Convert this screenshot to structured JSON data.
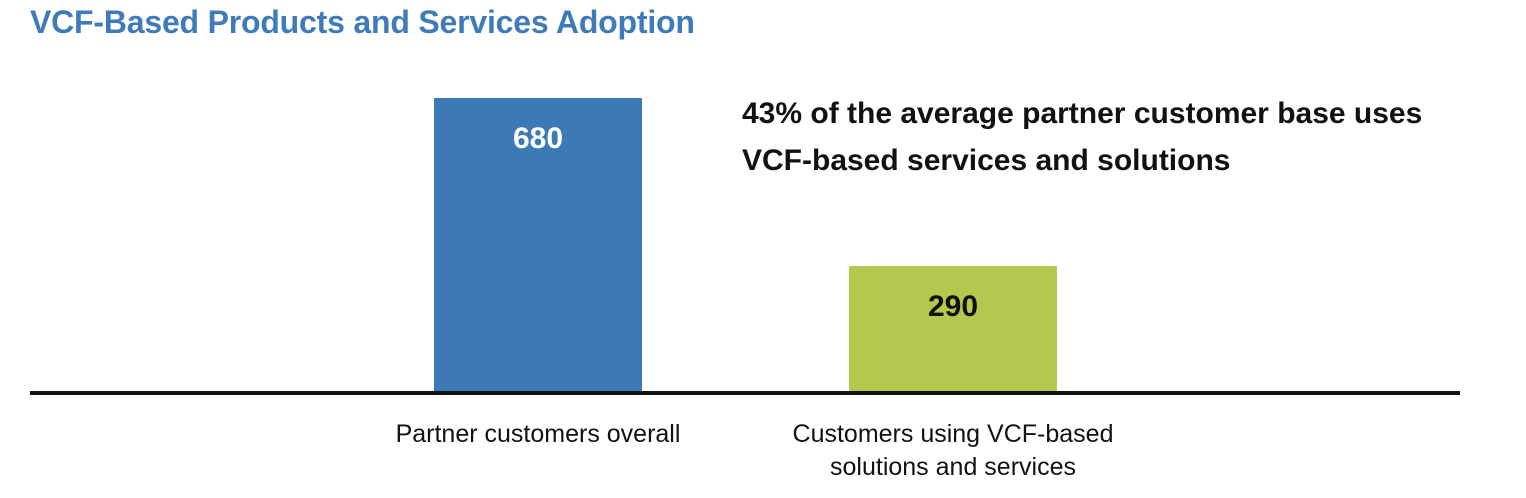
{
  "chart_data": {
    "type": "bar",
    "title": "VCF-Based Products and Services Adoption",
    "categories": [
      "Partner customers overall",
      "Customers using VCF-based solutions and services"
    ],
    "values": [
      680,
      290
    ],
    "data_labels": [
      "680",
      "290"
    ],
    "bar_colors": [
      "#3d79b6",
      "#b3c94d"
    ],
    "label_colors": [
      "#ffffff",
      "#111111"
    ],
    "annotation": "43% of the average partner customer base uses VCF-based services and solutions",
    "xlabel": "",
    "ylabel": "",
    "ylim": [
      0,
      750
    ],
    "grid": false,
    "legend": "none"
  },
  "colors": {
    "title": "#3f7bb8",
    "axis": "#111111"
  }
}
